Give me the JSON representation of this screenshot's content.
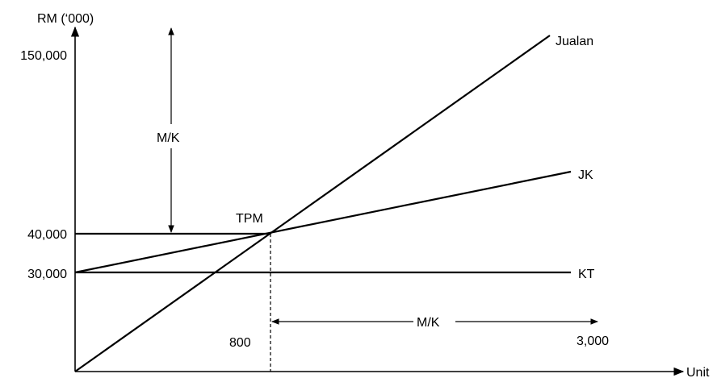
{
  "chart_data": {
    "type": "line",
    "ylabel": "RM (‘000)",
    "xlabel": "Unit",
    "y_tick_labels": [
      "150,000",
      "40,000",
      "30,000"
    ],
    "x_tick_labels": [
      "800",
      "3,000"
    ],
    "xlim": [
      0,
      3000
    ],
    "ylim": [
      0,
      150000
    ],
    "series": [
      {
        "name": "Jualan",
        "points": [
          [
            0,
            0
          ],
          [
            800,
            40000
          ],
          [
            2430,
            150000
          ]
        ]
      },
      {
        "name": "JK",
        "points": [
          [
            0,
            30000
          ],
          [
            800,
            40000
          ],
          [
            2500,
            70000
          ]
        ]
      },
      {
        "name": "KT",
        "points": [
          [
            0,
            30000
          ],
          [
            2500,
            30000
          ]
        ]
      }
    ],
    "annotations": {
      "break_even_label": "TPM",
      "break_even_point": [
        800,
        40000
      ],
      "mk_vertical_label": "M/K",
      "mk_horizontal_label": "M/K"
    }
  }
}
